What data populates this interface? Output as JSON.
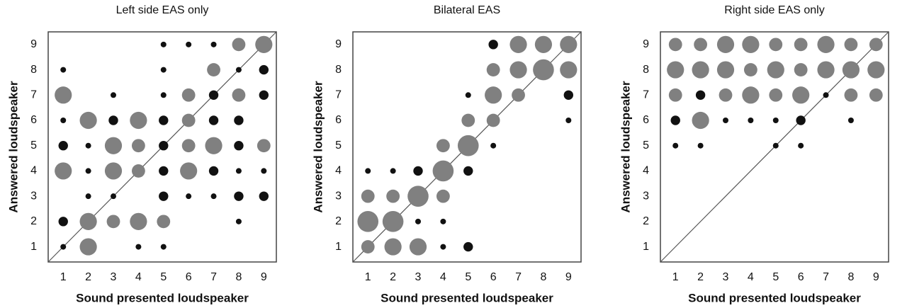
{
  "chart_data": [
    {
      "type": "bubble",
      "title": "Left side EAS only",
      "x_label": "Sound presented loudspeaker",
      "y_label": "Answered loudspeaker",
      "xlim": [
        0.4,
        9.5
      ],
      "ylim": [
        0.4,
        9.5
      ],
      "xticks": [
        1,
        2,
        3,
        4,
        5,
        6,
        7,
        8,
        9
      ],
      "yticks": [
        1,
        2,
        3,
        4,
        5,
        6,
        7,
        8,
        9
      ],
      "diagonal": true,
      "series": [
        {
          "color": "#111111",
          "x": [
            5,
            6,
            7,
            1,
            5,
            8,
            9,
            3,
            5,
            7,
            9,
            1,
            3,
            5,
            7,
            8,
            1,
            2,
            5,
            8,
            2,
            5,
            7,
            8,
            9,
            2,
            3,
            5,
            6,
            7,
            8,
            9,
            1,
            8,
            1,
            4,
            5
          ],
          "y": [
            9,
            9,
            9,
            8,
            8,
            8,
            8,
            7,
            7,
            7,
            7,
            6,
            6,
            6,
            6,
            6,
            5,
            5,
            5,
            5,
            4,
            4,
            4,
            4,
            4,
            3,
            3,
            3,
            3,
            3,
            3,
            3,
            2,
            2,
            1,
            1,
            1
          ],
          "sizes": [
            1,
            1,
            1,
            1,
            1,
            1,
            2,
            1,
            1,
            2,
            2,
            1,
            2,
            2,
            2,
            2,
            2,
            1,
            2,
            2,
            1,
            2,
            2,
            1,
            1,
            1,
            1,
            2,
            1,
            1,
            2,
            2,
            2,
            1,
            1,
            1,
            1
          ]
        },
        {
          "color": "#808080",
          "x": [
            8,
            9,
            7,
            1,
            6,
            8,
            2,
            4,
            6,
            3,
            4,
            6,
            7,
            9,
            1,
            3,
            4,
            6,
            2,
            3,
            4,
            5,
            2
          ],
          "y": [
            9,
            9,
            8,
            7,
            7,
            7,
            6,
            6,
            6,
            5,
            5,
            5,
            5,
            5,
            4,
            4,
            4,
            4,
            2,
            2,
            2,
            2,
            1
          ],
          "sizes": [
            3,
            4,
            3,
            4,
            3,
            3,
            4,
            4,
            3,
            4,
            3,
            3,
            4,
            3,
            4,
            4,
            3,
            4,
            4,
            3,
            4,
            3,
            4
          ]
        }
      ]
    },
    {
      "type": "bubble",
      "title": "Bilateral EAS",
      "x_label": "Sound presented loudspeaker",
      "y_label": "Answered loudspeaker",
      "xlim": [
        0.4,
        9.5
      ],
      "ylim": [
        0.4,
        9.5
      ],
      "xticks": [
        1,
        2,
        3,
        4,
        5,
        6,
        7,
        8,
        9
      ],
      "yticks": [
        1,
        2,
        3,
        4,
        5,
        6,
        7,
        8,
        9
      ],
      "diagonal": true,
      "series": [
        {
          "color": "#111111",
          "x": [
            6,
            5,
            9,
            9,
            6,
            1,
            2,
            3,
            5,
            3,
            4,
            4,
            5
          ],
          "y": [
            9,
            7,
            7,
            6,
            5,
            4,
            4,
            4,
            4,
            2,
            2,
            1,
            1
          ],
          "sizes": [
            2,
            1,
            2,
            1,
            1,
            1,
            1,
            2,
            2,
            1,
            1,
            1,
            2
          ]
        },
        {
          "color": "#808080",
          "x": [
            7,
            8,
            9,
            6,
            7,
            8,
            9,
            6,
            7,
            5,
            6,
            4,
            5,
            4,
            1,
            2,
            3,
            4,
            1,
            2,
            1,
            2,
            3
          ],
          "y": [
            9,
            9,
            9,
            8,
            8,
            8,
            8,
            7,
            7,
            6,
            6,
            5,
            5,
            4,
            3,
            3,
            3,
            3,
            2,
            2,
            1,
            1,
            1
          ],
          "sizes": [
            4,
            4,
            4,
            3,
            4,
            5,
            4,
            4,
            3,
            3,
            3,
            3,
            5,
            5,
            3,
            3,
            5,
            3,
            5,
            5,
            3,
            4,
            4
          ]
        }
      ]
    },
    {
      "type": "bubble",
      "title": "Right side EAS only",
      "x_label": "Sound presented loudspeaker",
      "y_label": "Answered loudspeaker",
      "xlim": [
        0.4,
        9.5
      ],
      "ylim": [
        0.4,
        9.5
      ],
      "xticks": [
        1,
        2,
        3,
        4,
        5,
        6,
        7,
        8,
        9
      ],
      "yticks": [
        1,
        2,
        3,
        4,
        5,
        6,
        7,
        8,
        9
      ],
      "diagonal": true,
      "series": [
        {
          "color": "#111111",
          "x": [
            2,
            7,
            1,
            3,
            4,
            5,
            6,
            8,
            1,
            2,
            5,
            6
          ],
          "y": [
            7,
            7,
            6,
            6,
            6,
            6,
            6,
            6,
            5,
            5,
            5,
            5
          ],
          "sizes": [
            2,
            1,
            2,
            1,
            1,
            1,
            2,
            1,
            1,
            1,
            1,
            1
          ]
        },
        {
          "color": "#808080",
          "x": [
            1,
            2,
            3,
            4,
            5,
            6,
            7,
            8,
            9,
            1,
            2,
            3,
            4,
            5,
            6,
            7,
            8,
            9,
            1,
            3,
            4,
            5,
            6,
            8,
            9,
            2
          ],
          "y": [
            9,
            9,
            9,
            9,
            9,
            9,
            9,
            9,
            9,
            8,
            8,
            8,
            8,
            8,
            8,
            8,
            8,
            8,
            7,
            7,
            7,
            7,
            7,
            7,
            7,
            6
          ],
          "sizes": [
            3,
            3,
            4,
            4,
            3,
            3,
            4,
            3,
            3,
            4,
            4,
            4,
            3,
            4,
            3,
            4,
            4,
            4,
            3,
            3,
            4,
            3,
            4,
            3,
            3,
            4
          ]
        }
      ]
    }
  ]
}
